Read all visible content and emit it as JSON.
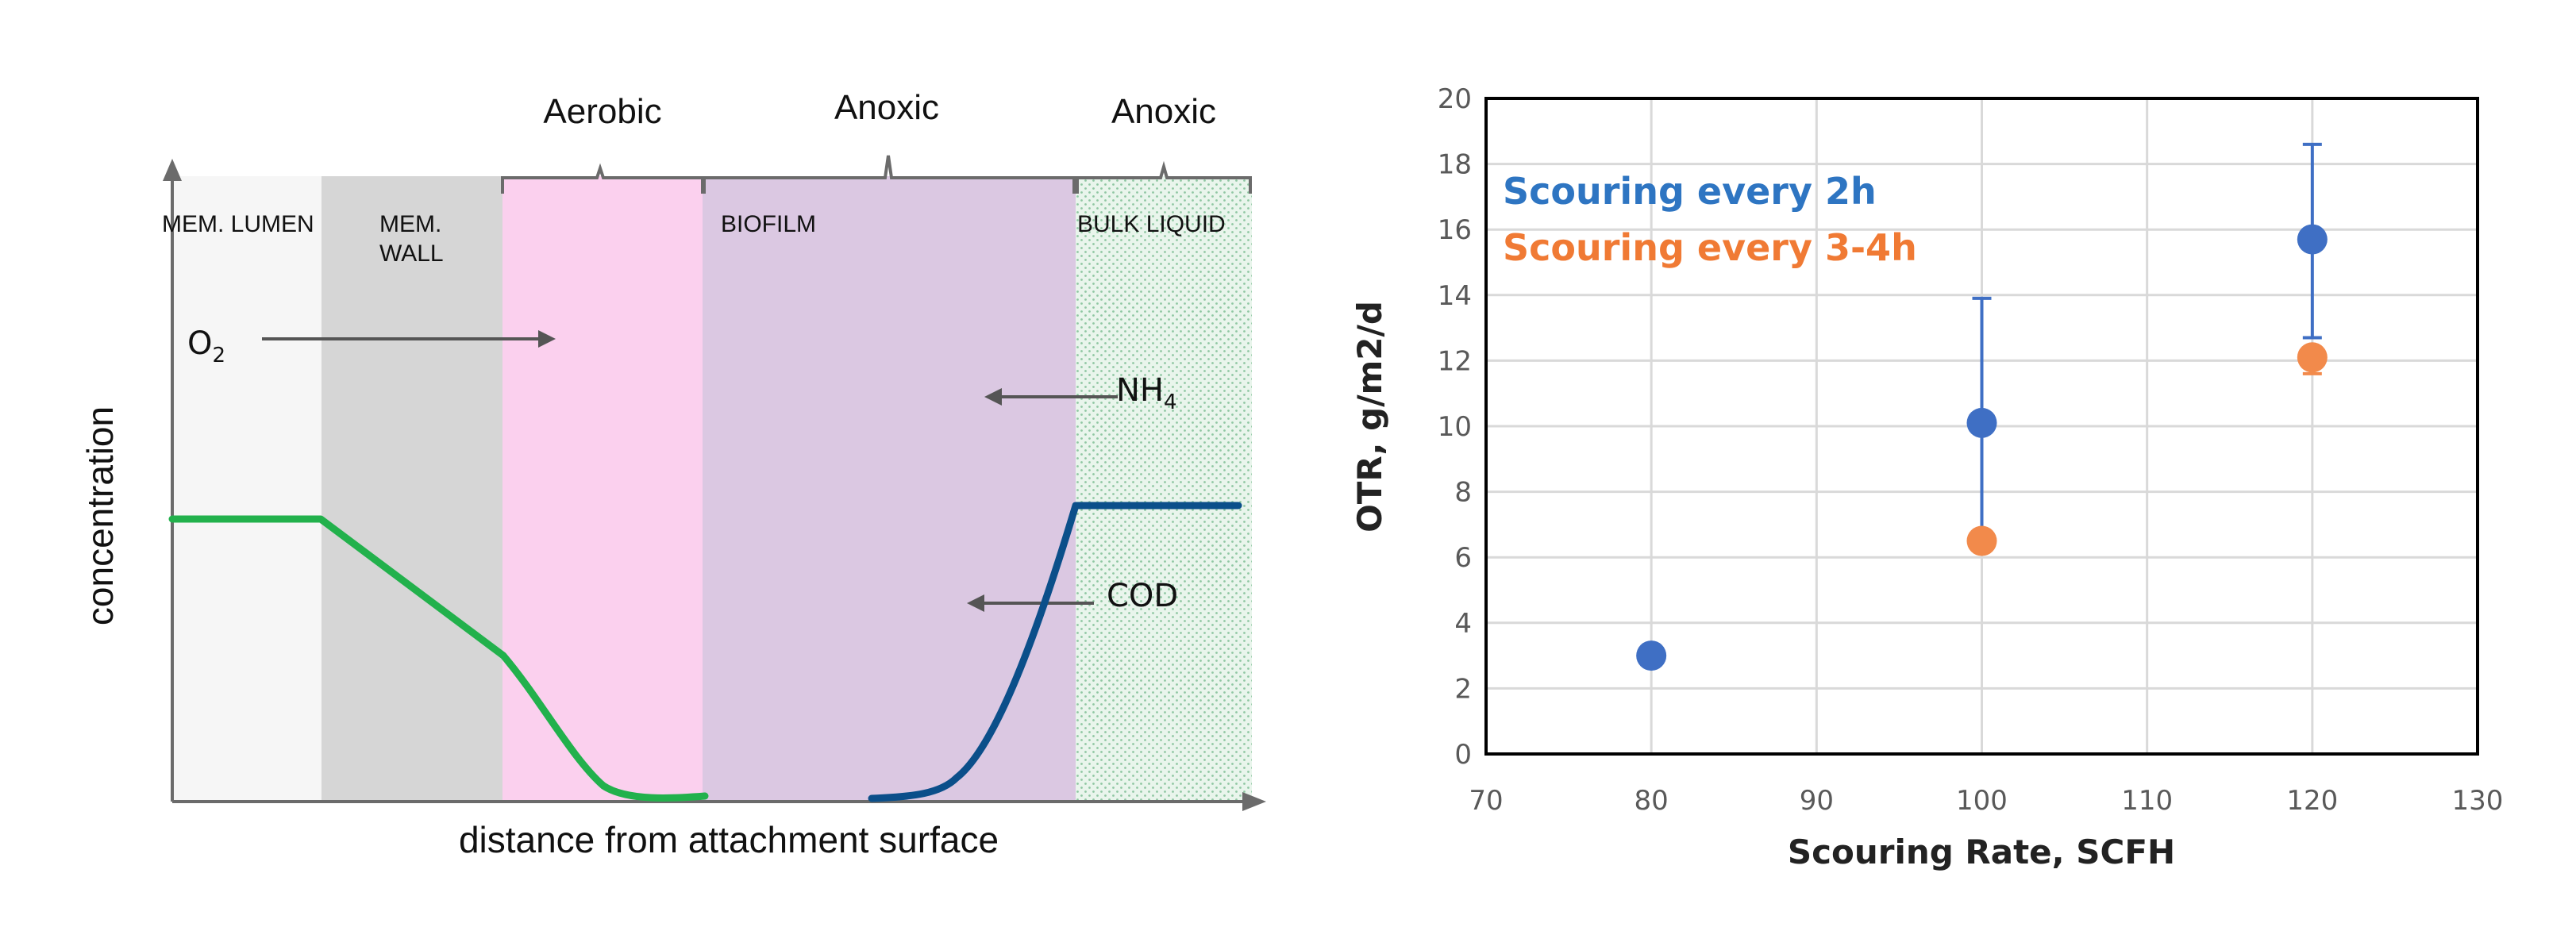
{
  "chart_data": [
    {
      "type": "diagram",
      "xlabel": "distance from attachment surface",
      "ylabel": "concentration",
      "zones": [
        {
          "label": "MEM. LUMEN",
          "color": "#f6f6f6"
        },
        {
          "label": "MEM.\nWALL",
          "color": "#d6d6d6"
        },
        {
          "label": "",
          "color": "#fbd0ee"
        },
        {
          "label": "BIOFILM",
          "color": "#dbc8e2"
        },
        {
          "label": "BULK LIQUID",
          "color": "#e6f4ea"
        }
      ],
      "region_labels": [
        "Aerobic",
        "Anoxic",
        "Anoxic"
      ],
      "species": {
        "o2": "O",
        "o2_sub": "2",
        "nh4": "NH",
        "nh4_sub": "4",
        "cod": "COD"
      },
      "curve_colors": {
        "o2": "#22b14c",
        "cod": "#0b4f8a"
      }
    },
    {
      "type": "scatter",
      "xlabel": "Scouring Rate, SCFH",
      "ylabel": "OTR, g/m2/d",
      "xlim": [
        70,
        130
      ],
      "ylim": [
        0,
        20
      ],
      "xticks": [
        70,
        80,
        90,
        100,
        110,
        120,
        130
      ],
      "yticks": [
        0,
        2,
        4,
        6,
        8,
        10,
        12,
        14,
        16,
        18,
        20
      ],
      "grid": true,
      "legend_position": "top-left",
      "series": [
        {
          "name": "Scouring every 2h",
          "color": "#3f6fc4",
          "points": [
            {
              "x": 80,
              "y": 3.0
            },
            {
              "x": 100,
              "y": 10.1,
              "err_low": 6.6,
              "err_high": 13.9
            },
            {
              "x": 120,
              "y": 15.7,
              "err_low": 12.7,
              "err_high": 18.6
            }
          ]
        },
        {
          "name": "Scouring every 3-4h",
          "color": "#f28a4b",
          "points": [
            {
              "x": 100,
              "y": 6.5
            },
            {
              "x": 120,
              "y": 12.1,
              "err_low": 11.6,
              "err_high": 12.3
            }
          ]
        }
      ]
    }
  ]
}
